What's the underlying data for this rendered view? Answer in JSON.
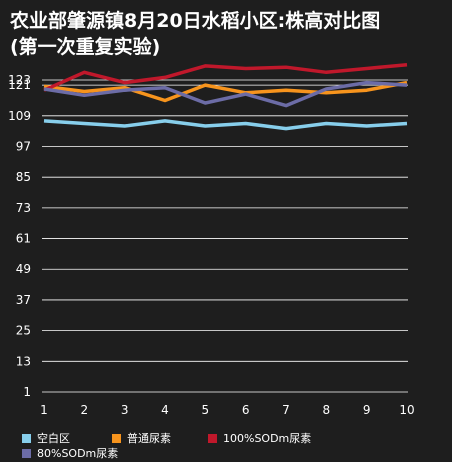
{
  "chart_data": {
    "type": "line",
    "title": "农业部肇源镇8月20日水稻小区:株高对比图",
    "subtitle": "(第一次重复实验)",
    "x": [
      "1",
      "2",
      "3",
      "4",
      "5",
      "6",
      "7",
      "8",
      "9",
      "10"
    ],
    "y_ticks": [
      "123",
      "121",
      "109",
      "97",
      "85",
      "73",
      "61",
      "49",
      "37",
      "25",
      "13",
      "1"
    ],
    "ylim": [
      1,
      123
    ],
    "grid": true,
    "legend_position": "bottom",
    "colors": {
      "background": "#1e1e1e",
      "grid": "#ffffff",
      "text": "#ffffff"
    },
    "series": [
      {
        "name": "空白区",
        "color": "#87ceeb",
        "values": [
          107,
          106,
          105,
          107,
          105,
          106,
          104,
          106,
          105,
          106
        ]
      },
      {
        "name": "普通尿素",
        "color": "#f7941d",
        "values": [
          120.5,
          118.5,
          120,
          115,
          121,
          118,
          119,
          118,
          119,
          122
        ]
      },
      {
        "name": "100%SODm尿素",
        "color": "#c0182b",
        "values": [
          119,
          126,
          122,
          124,
          128.5,
          127.5,
          128,
          126,
          127.5,
          129
        ]
      },
      {
        "name": "80%SODm尿素",
        "color": "#6c6ca6",
        "values": [
          119.5,
          117,
          119,
          120,
          114,
          117.5,
          113,
          119.5,
          122,
          121
        ]
      }
    ]
  }
}
